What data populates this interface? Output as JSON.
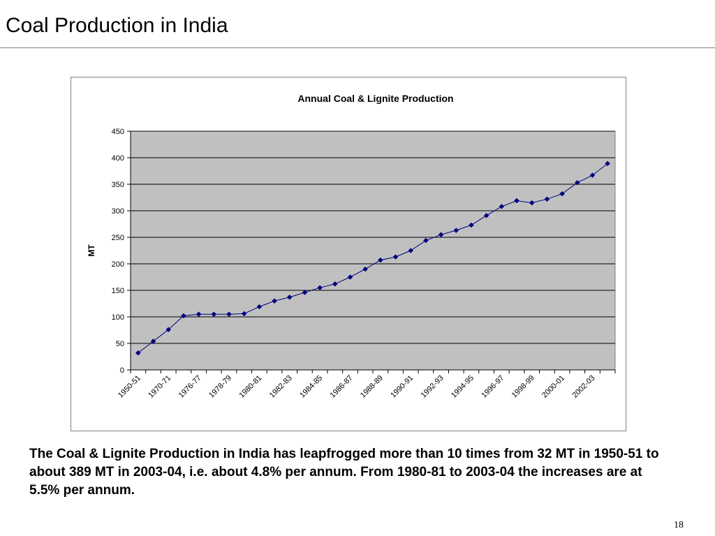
{
  "slide": {
    "title": "Coal Production in India",
    "caption": "The Coal & Lignite Production in India has leapfrogged more than 10 times from 32 MT in 1950-51 to about 389 MT in 2003-04, i.e. about 4.8% per annum. From 1980-81 to 2003-04 the increases are at 5.5% per annum.",
    "page_number": "18"
  },
  "colors": {
    "plot_background": "#C0C0C0",
    "series_line": "#000080",
    "gridline": "#000000"
  },
  "chart_data": {
    "type": "line",
    "title": "Annual Coal & Lignite Production",
    "xlabel": "",
    "ylabel": "MT",
    "ylim": [
      0,
      450
    ],
    "yticks": [
      0,
      50,
      100,
      150,
      200,
      250,
      300,
      350,
      400,
      450
    ],
    "grid": "horizontal",
    "legend": "none",
    "x_tick_labels": [
      "1950-51",
      "1970-71",
      "1976-77",
      "1978-79",
      "1980-81",
      "1982-83",
      "1984-85",
      "1986-87",
      "1988-89",
      "1990-91",
      "1992-93",
      "1994-95",
      "1996-97",
      "1998-99",
      "2000-01",
      "2002-03"
    ],
    "series": [
      {
        "values": [
          32,
          54,
          76,
          102,
          105,
          105,
          105,
          106,
          119,
          130,
          137,
          146,
          155,
          162,
          175,
          190,
          207,
          213,
          225,
          244,
          255,
          263,
          273,
          291,
          308,
          319,
          315,
          322,
          332,
          353,
          367,
          389
        ]
      }
    ]
  }
}
